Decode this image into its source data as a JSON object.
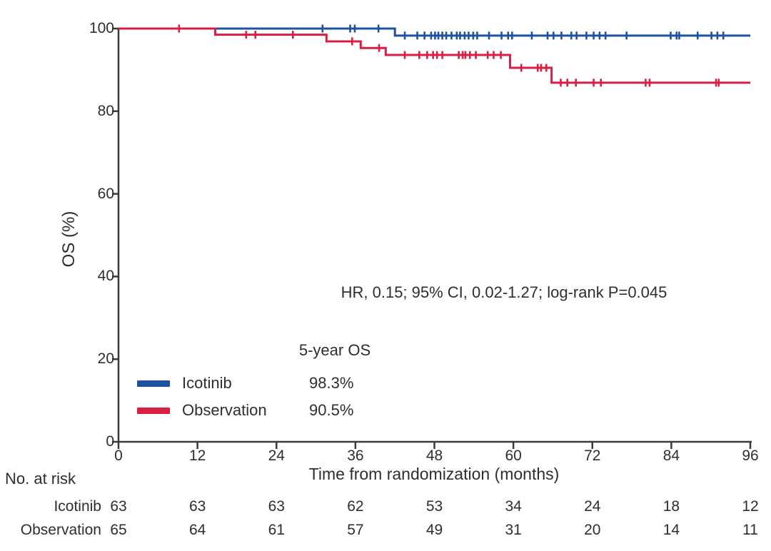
{
  "chart_data": {
    "type": "line",
    "subtype": "kaplan-meier-step",
    "title": "",
    "xlabel": "Time from randomization (months)",
    "ylabel": "OS (%)",
    "xlim": [
      0,
      96
    ],
    "ylim": [
      0,
      100
    ],
    "xticks": [
      0,
      12,
      24,
      36,
      48,
      60,
      72,
      84,
      96
    ],
    "yticks": [
      0,
      20,
      40,
      60,
      80,
      100
    ],
    "grid": false,
    "annotation": "HR, 0.15; 95% CI, 0.02-1.27; log-rank P=0.045",
    "axis_color": "#3a3a3a",
    "series": [
      {
        "name": "Icotinib",
        "color": "#1f51a1",
        "five_year_os": "98.3%",
        "steps": [
          [
            0,
            100
          ],
          [
            42,
            98.3
          ]
        ],
        "end": 96,
        "censors": [
          [
            31,
            100
          ],
          [
            35.2,
            100
          ],
          [
            35.9,
            100
          ],
          [
            39.5,
            100
          ],
          [
            43.5,
            98.3
          ],
          [
            45.4,
            98.3
          ],
          [
            46.5,
            98.3
          ],
          [
            47.5,
            98.3
          ],
          [
            48.1,
            98.3
          ],
          [
            48.6,
            98.3
          ],
          [
            49.2,
            98.3
          ],
          [
            49.8,
            98.3
          ],
          [
            50.6,
            98.3
          ],
          [
            51.4,
            98.3
          ],
          [
            51.9,
            98.3
          ],
          [
            52.6,
            98.3
          ],
          [
            53.2,
            98.3
          ],
          [
            53.9,
            98.3
          ],
          [
            54.5,
            98.3
          ],
          [
            56.3,
            98.3
          ],
          [
            58.2,
            98.3
          ],
          [
            59.2,
            98.3
          ],
          [
            59.8,
            98.3
          ],
          [
            62.8,
            98.3
          ],
          [
            65.2,
            98.3
          ],
          [
            66.1,
            98.3
          ],
          [
            67.3,
            98.3
          ],
          [
            68.8,
            98.3
          ],
          [
            69.6,
            98.3
          ],
          [
            71.1,
            98.3
          ],
          [
            72.2,
            98.3
          ],
          [
            73.1,
            98.3
          ],
          [
            74.0,
            98.3
          ],
          [
            77.2,
            98.3
          ],
          [
            83.9,
            98.3
          ],
          [
            84.8,
            98.3
          ],
          [
            85.2,
            98.3
          ],
          [
            88.0,
            98.3
          ],
          [
            90.1,
            98.3
          ],
          [
            91.0,
            98.3
          ],
          [
            91.9,
            98.3
          ]
        ]
      },
      {
        "name": "Observation",
        "color": "#d81e43",
        "five_year_os": "90.5%",
        "steps": [
          [
            0,
            100
          ],
          [
            14.7,
            98.5
          ],
          [
            31.6,
            96.9
          ],
          [
            36.8,
            95.3
          ],
          [
            40.6,
            93.6
          ],
          [
            59.5,
            90.5
          ],
          [
            65.8,
            86.9
          ]
        ],
        "end": 96,
        "censors": [
          [
            9.2,
            100
          ],
          [
            19.4,
            98.5
          ],
          [
            20.8,
            98.5
          ],
          [
            26.5,
            98.5
          ],
          [
            35.5,
            96.9
          ],
          [
            39.6,
            95.3
          ],
          [
            43.5,
            93.6
          ],
          [
            45.7,
            93.6
          ],
          [
            46.9,
            93.6
          ],
          [
            47.8,
            93.6
          ],
          [
            48.4,
            93.6
          ],
          [
            49.2,
            93.6
          ],
          [
            51.7,
            93.6
          ],
          [
            52.3,
            93.6
          ],
          [
            52.7,
            93.6
          ],
          [
            53.4,
            93.6
          ],
          [
            54.3,
            93.6
          ],
          [
            56.1,
            93.6
          ],
          [
            57.0,
            93.6
          ],
          [
            58.1,
            93.6
          ],
          [
            61.2,
            90.5
          ],
          [
            63.7,
            90.5
          ],
          [
            64.2,
            90.5
          ],
          [
            65.0,
            90.5
          ],
          [
            67.2,
            86.9
          ],
          [
            68.2,
            86.9
          ],
          [
            69.5,
            86.9
          ],
          [
            72.2,
            86.9
          ],
          [
            73.3,
            86.9
          ],
          [
            80.1,
            86.9
          ],
          [
            80.7,
            86.9
          ],
          [
            90.8,
            86.9
          ],
          [
            91.2,
            86.9
          ]
        ]
      }
    ],
    "legend": {
      "header": "5-year OS",
      "entries": [
        {
          "label": "Icotinib",
          "value": "98.3%"
        },
        {
          "label": "Observation",
          "value": "90.5%"
        }
      ]
    },
    "risk_table": {
      "title": "No. at risk",
      "times": [
        0,
        12,
        24,
        36,
        48,
        60,
        72,
        84,
        96
      ],
      "rows": [
        {
          "name": "Icotinib",
          "values": [
            63,
            63,
            63,
            62,
            53,
            34,
            24,
            18,
            12
          ]
        },
        {
          "name": "Observation",
          "values": [
            65,
            64,
            61,
            57,
            49,
            31,
            20,
            14,
            11
          ]
        }
      ]
    }
  }
}
